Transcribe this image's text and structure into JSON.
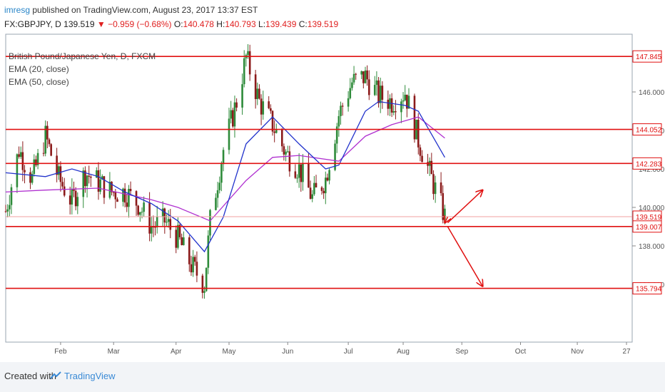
{
  "header": {
    "user": "imresg",
    "published": " published on TradingView.com, August 23, 2017 13:37 EST"
  },
  "symbol_line": {
    "symbol": "FX:GBPJPY, D",
    "last": "139.519",
    "change": "−0.959 (−0.68%)",
    "o_label": "O:",
    "o": "140.478",
    "h_label": "H:",
    "h": "140.793",
    "l_label": "L:",
    "l": "139.439",
    "c_label": "C:",
    "c": "139.519"
  },
  "legend": {
    "instrument": "British Pound/Japanese Yen, D, FXCM",
    "ema20": "EMA (20, close)",
    "ema50": "EMA (50, close)"
  },
  "footer": {
    "created": "Created with",
    "brand": "TradingView"
  },
  "colors": {
    "up": "#2e8b3a",
    "down": "#8b1a1a",
    "ema20": "#2233cc",
    "ema50": "#b030d0",
    "level": "#e01010",
    "arrow": "#e01010",
    "label_bg": "#e01010"
  },
  "chart_data": {
    "type": "candlestick",
    "ylim": [
      133.0,
      149.0
    ],
    "y_ticks": [
      "146.000",
      "144.000",
      "142.000",
      "140.000",
      "138.000",
      "136.000"
    ],
    "x_ticks": [
      "Feb",
      "Mar",
      "Apr",
      "May",
      "Jun",
      "Jul",
      "Aug",
      "Sep",
      "Oct",
      "Nov",
      "27"
    ],
    "horizontal_levels": [
      147.845,
      144.052,
      142.283,
      139.007,
      135.794
    ],
    "price_labels": [
      "147.845",
      "144.052",
      "142.283",
      "139.519",
      "139.007",
      "135.794"
    ],
    "last_price": 139.519,
    "close_path": [
      {
        "date": "2017-01-03",
        "close": 139.8
      },
      {
        "date": "2017-01-10",
        "close": 143.0
      },
      {
        "date": "2017-01-17",
        "close": 141.5
      },
      {
        "date": "2017-01-24",
        "close": 143.7
      },
      {
        "date": "2017-01-31",
        "close": 141.5
      },
      {
        "date": "2017-02-07",
        "close": 140.3
      },
      {
        "date": "2017-02-14",
        "close": 141.8
      },
      {
        "date": "2017-02-21",
        "close": 141.3
      },
      {
        "date": "2017-02-28",
        "close": 140.8
      },
      {
        "date": "2017-03-07",
        "close": 140.8
      },
      {
        "date": "2017-03-14",
        "close": 140.2
      },
      {
        "date": "2017-03-21",
        "close": 139.0
      },
      {
        "date": "2017-03-28",
        "close": 139.3
      },
      {
        "date": "2017-04-04",
        "close": 138.4
      },
      {
        "date": "2017-04-11",
        "close": 137.0
      },
      {
        "date": "2017-04-18",
        "close": 136.0
      },
      {
        "date": "2017-04-21",
        "close": 139.3
      },
      {
        "date": "2017-04-28",
        "close": 143.0
      },
      {
        "date": "2017-05-05",
        "close": 145.5
      },
      {
        "date": "2017-05-10",
        "close": 147.8
      },
      {
        "date": "2017-05-17",
        "close": 145.5
      },
      {
        "date": "2017-05-24",
        "close": 144.3
      },
      {
        "date": "2017-05-31",
        "close": 142.8
      },
      {
        "date": "2017-06-07",
        "close": 142.0
      },
      {
        "date": "2017-06-14",
        "close": 140.5
      },
      {
        "date": "2017-06-21",
        "close": 141.5
      },
      {
        "date": "2017-06-28",
        "close": 144.8
      },
      {
        "date": "2017-07-05",
        "close": 146.5
      },
      {
        "date": "2017-07-12",
        "close": 146.8
      },
      {
        "date": "2017-07-19",
        "close": 145.8
      },
      {
        "date": "2017-07-26",
        "close": 145.5
      },
      {
        "date": "2017-08-02",
        "close": 146.0
      },
      {
        "date": "2017-08-09",
        "close": 143.5
      },
      {
        "date": "2017-08-16",
        "close": 141.5
      },
      {
        "date": "2017-08-23",
        "close": 139.519
      }
    ],
    "ema20": [
      {
        "date": "2017-01-03",
        "value": 141.8
      },
      {
        "date": "2017-01-24",
        "value": 141.6
      },
      {
        "date": "2017-02-07",
        "value": 142.0
      },
      {
        "date": "2017-02-21",
        "value": 141.6
      },
      {
        "date": "2017-03-07",
        "value": 140.8
      },
      {
        "date": "2017-03-21",
        "value": 140.2
      },
      {
        "date": "2017-04-04",
        "value": 139.3
      },
      {
        "date": "2017-04-18",
        "value": 137.7
      },
      {
        "date": "2017-04-28",
        "value": 139.5
      },
      {
        "date": "2017-05-10",
        "value": 143.3
      },
      {
        "date": "2017-05-24",
        "value": 144.7
      },
      {
        "date": "2017-06-07",
        "value": 143.3
      },
      {
        "date": "2017-06-21",
        "value": 142.0
      },
      {
        "date": "2017-06-28",
        "value": 142.2
      },
      {
        "date": "2017-07-12",
        "value": 145.0
      },
      {
        "date": "2017-07-19",
        "value": 145.5
      },
      {
        "date": "2017-08-02",
        "value": 145.3
      },
      {
        "date": "2017-08-09",
        "value": 145.0
      },
      {
        "date": "2017-08-23",
        "value": 142.6
      }
    ],
    "ema50": [
      {
        "date": "2017-01-03",
        "value": 140.8
      },
      {
        "date": "2017-01-24",
        "value": 140.9
      },
      {
        "date": "2017-02-21",
        "value": 141.0
      },
      {
        "date": "2017-03-21",
        "value": 140.4
      },
      {
        "date": "2017-04-04",
        "value": 140.0
      },
      {
        "date": "2017-04-21",
        "value": 139.3
      },
      {
        "date": "2017-05-10",
        "value": 141.4
      },
      {
        "date": "2017-05-24",
        "value": 142.6
      },
      {
        "date": "2017-06-07",
        "value": 142.7
      },
      {
        "date": "2017-06-28",
        "value": 142.4
      },
      {
        "date": "2017-07-12",
        "value": 143.7
      },
      {
        "date": "2017-07-26",
        "value": 144.3
      },
      {
        "date": "2017-08-09",
        "value": 144.7
      },
      {
        "date": "2017-08-23",
        "value": 143.6
      }
    ],
    "projection_arrows": [
      {
        "from": {
          "date": "2017-08-23",
          "price": 139.5
        },
        "to": {
          "date": "2017-08-23",
          "price": 139.2
        }
      },
      {
        "from": {
          "date": "2017-08-23",
          "price": 139.2
        },
        "to": {
          "date": "2017-09-12",
          "price": 140.9
        }
      },
      {
        "from": {
          "date": "2017-08-23",
          "price": 139.0
        },
        "to": {
          "date": "2017-09-12",
          "price": 135.9
        }
      }
    ]
  }
}
